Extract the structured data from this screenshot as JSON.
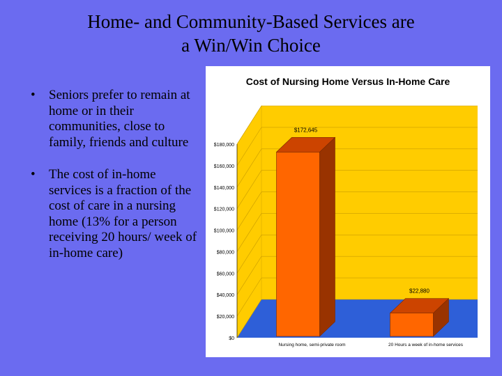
{
  "slide": {
    "title_line1": "Home- and Community-Based Services are",
    "title_line2": "a Win/Win Choice",
    "bullets": [
      "Seniors prefer to remain at home or in their communities, close to family, friends and culture",
      "The cost of in-home services is a fraction of the cost of care in a nursing home (13% for a person receiving 20 hours/ week of in-home care)"
    ]
  },
  "colors": {
    "background": "#6b6bf0",
    "wall": "#ffcc00",
    "floor": "#2e5fd8",
    "bar_front": "#ff6600",
    "bar_top": "#cc4400",
    "bar_side": "#993300"
  },
  "chart_data": {
    "type": "bar",
    "title": "Cost of Nursing Home Versus In-Home Care",
    "categories": [
      "Nursing home, semi-private room",
      "20 Hours a week of in-home services"
    ],
    "values": [
      172645,
      22880
    ],
    "data_labels": [
      "$172,645",
      "$22,880"
    ],
    "ylim": [
      0,
      180000
    ],
    "y_ticks": [
      0,
      20000,
      40000,
      60000,
      80000,
      100000,
      120000,
      140000,
      160000,
      180000
    ],
    "y_tick_labels": [
      "$0",
      "$20,000",
      "$40,000",
      "$60,000",
      "$80,000",
      "$100,000",
      "$120,000",
      "$140,000",
      "$160,000",
      "$180,000"
    ],
    "grid": true,
    "legend": "none"
  }
}
